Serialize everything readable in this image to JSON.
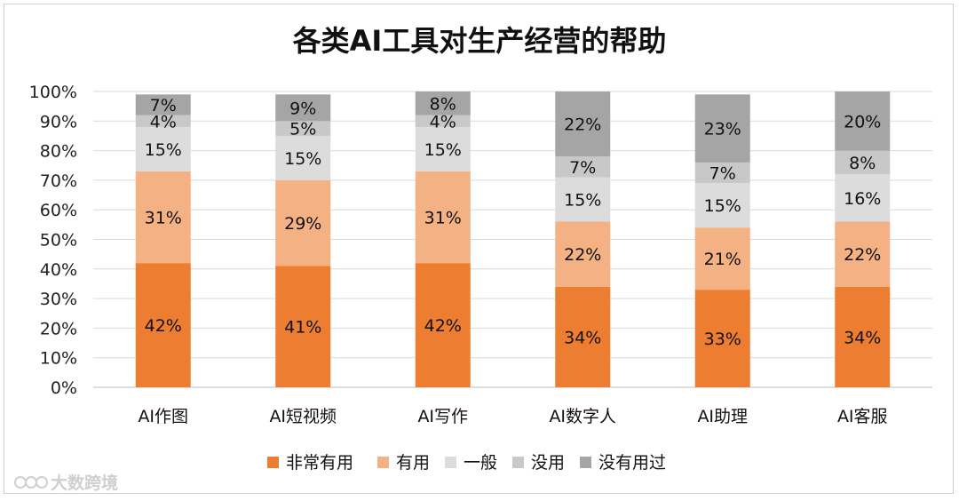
{
  "chart_data": {
    "type": "bar",
    "stacked": true,
    "title": "各类AI工具对生产经营的帮助",
    "categories": [
      "AI作图",
      "AI短视频",
      "AI写作",
      "AI数字人",
      "AI助理",
      "AI客服"
    ],
    "series": [
      {
        "name": "非常有用",
        "values": [
          42,
          41,
          42,
          34,
          33,
          34
        ],
        "color": "#ED7D31"
      },
      {
        "name": "有用",
        "values": [
          31,
          29,
          31,
          22,
          21,
          22
        ],
        "color": "#F4B183"
      },
      {
        "name": "一般",
        "values": [
          15,
          15,
          15,
          15,
          15,
          16
        ],
        "color": "#DCDCDC"
      },
      {
        "name": "没用",
        "values": [
          4,
          5,
          4,
          7,
          7,
          8
        ],
        "color": "#C8C8C8"
      },
      {
        "name": "没有用过",
        "values": [
          7,
          9,
          8,
          22,
          23,
          20
        ],
        "color": "#A5A5A5"
      }
    ],
    "value_suffix": "%",
    "ylim": [
      0,
      100
    ],
    "yticks": [
      "0%",
      "10%",
      "20%",
      "30%",
      "40%",
      "50%",
      "60%",
      "70%",
      "80%",
      "90%",
      "100%"
    ],
    "grid": true,
    "legend_position": "bottom"
  },
  "watermark": "大数跨境"
}
